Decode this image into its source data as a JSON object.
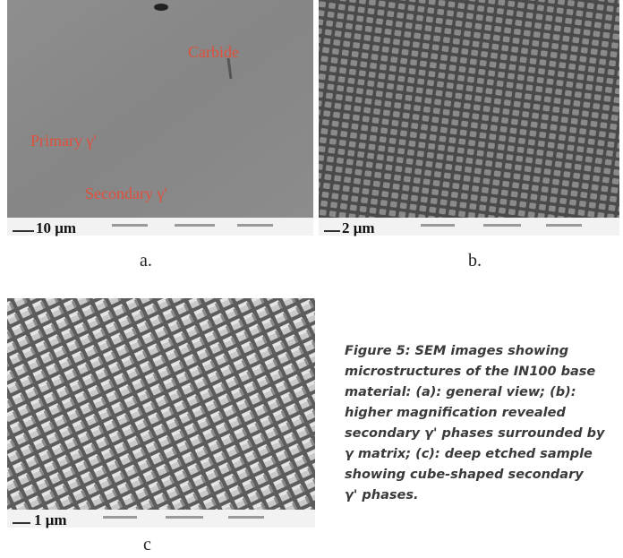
{
  "figure": {
    "panels": [
      {
        "label": "a.",
        "scale_bar": "10 μm",
        "annotations": [
          "Carbide",
          "Primary γ'",
          "Secondary γ'"
        ]
      },
      {
        "label": "b.",
        "scale_bar": "2 μm"
      },
      {
        "label": "c",
        "scale_bar": "1 μm"
      }
    ],
    "caption": {
      "lines": [
        "Figure 5: SEM images showing",
        "microstructures of the IN100 base",
        "material: (a): general view; (b):",
        "higher magnification revealed",
        "secondary γ' phases surrounded by",
        "γ matrix; (c): deep etched sample",
        "showing cube-shaped secondary",
        "γ' phases."
      ]
    }
  }
}
